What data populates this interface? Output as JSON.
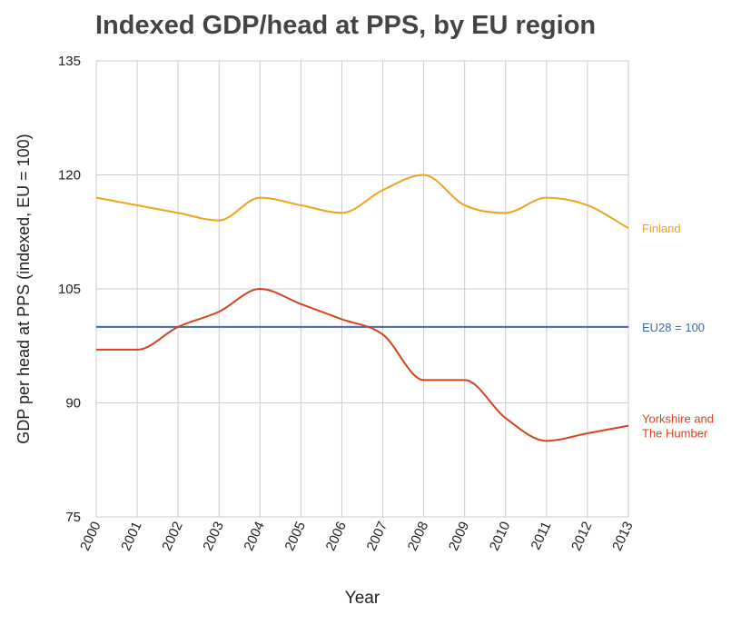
{
  "chart_data": {
    "type": "line",
    "title": "Indexed GDP/head at PPS, by EU region",
    "xlabel": "Year",
    "ylabel": "GDP per head at PPS (indexed, EU = 100)",
    "x": [
      "2000",
      "2001",
      "2002",
      "2003",
      "2004",
      "2005",
      "2006",
      "2007",
      "2008",
      "2009",
      "2010",
      "2011",
      "2012",
      "2013"
    ],
    "ylim": [
      75,
      135
    ],
    "yticks": [
      75,
      90,
      105,
      120,
      135
    ],
    "yticks_labels": [
      "75",
      "90",
      "105",
      "120",
      "135"
    ],
    "grid": true,
    "legend": "inline-right",
    "series": [
      {
        "name": "Finland",
        "label": "Finland",
        "color": "#f4a11b",
        "values": [
          117,
          116,
          115,
          114,
          117,
          116,
          115,
          118,
          120,
          116,
          115,
          117,
          116,
          113
        ]
      },
      {
        "name": "EU28 = 100",
        "label": "EU28 = 100",
        "color": "#3f68a6",
        "values": [
          100,
          100,
          100,
          100,
          100,
          100,
          100,
          100,
          100,
          100,
          100,
          100,
          100,
          100
        ]
      },
      {
        "name": "Yorkshire and The Humber",
        "label_lines": [
          "Yorkshire and",
          "The Humber"
        ],
        "color": "#d5431f",
        "values": [
          97,
          97,
          100,
          102,
          105,
          103,
          101,
          99,
          93,
          93,
          88,
          85,
          86,
          87
        ]
      }
    ]
  }
}
